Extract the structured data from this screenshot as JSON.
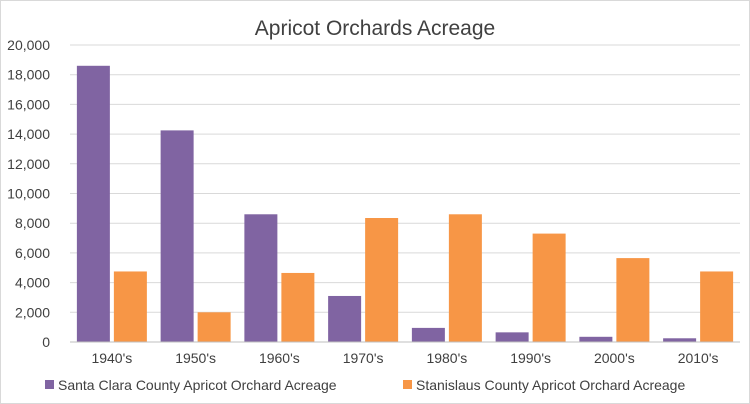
{
  "chart_data": {
    "type": "bar",
    "title": "Apricot Orchards Acreage",
    "categories": [
      "1940's",
      "1950's",
      "1960's",
      "1970's",
      "1980's",
      "1990's",
      "2000's",
      "2010's"
    ],
    "series": [
      {
        "name": "Santa Clara County Apricot Orchard Acreage",
        "color": "#8064a2",
        "values": [
          18600,
          14250,
          8600,
          3100,
          950,
          650,
          350,
          250
        ]
      },
      {
        "name": "Stanislaus County Apricot Orchard Acreage",
        "color": "#f79646",
        "values": [
          4750,
          2000,
          4650,
          8350,
          8600,
          7300,
          5650,
          4750
        ]
      }
    ],
    "yticks": [
      "0",
      "2,000",
      "4,000",
      "6,000",
      "8,000",
      "10,000",
      "12,000",
      "14,000",
      "16,000",
      "18,000",
      "20,000"
    ],
    "ylim": [
      0,
      20000
    ],
    "grid": true,
    "legend": "bottom"
  }
}
